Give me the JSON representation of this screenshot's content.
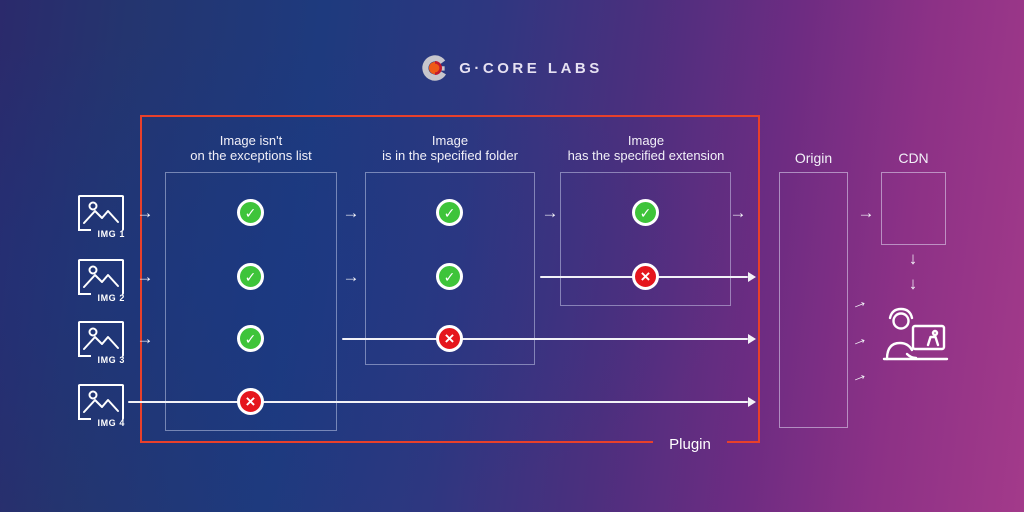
{
  "logo": {
    "brand": "G·CORE LABS"
  },
  "plugin": {
    "label": "Plugin",
    "stages": [
      {
        "title": "Image isn't\non the exceptions list"
      },
      {
        "title": "Image\nis in the specified folder"
      },
      {
        "title": "Image\nhas the specified extension"
      }
    ]
  },
  "flow": {
    "rows": [
      {
        "label": "IMG 1",
        "results": [
          "pass",
          "pass",
          "pass"
        ]
      },
      {
        "label": "IMG 2",
        "results": [
          "pass",
          "pass",
          "fail"
        ]
      },
      {
        "label": "IMG 3",
        "results": [
          "pass",
          "fail"
        ]
      },
      {
        "label": "IMG 4",
        "results": [
          "fail"
        ]
      }
    ]
  },
  "endpoints": {
    "origin": "Origin",
    "cdn": "CDN"
  },
  "icons": {
    "check": "✓",
    "cross": "×",
    "arrow_right": "→",
    "arrow_down": "↓",
    "image_icon": "picture-with-mountains",
    "user_icon": "person-at-computer"
  },
  "colors": {
    "plugin_border": "#e8402b",
    "pass_green": "#3ec43a",
    "fail_red": "#e5161d",
    "line_white": "#f2f2f7",
    "bg_blue": "#1e3a7e",
    "bg_magenta": "#a33a8a"
  }
}
